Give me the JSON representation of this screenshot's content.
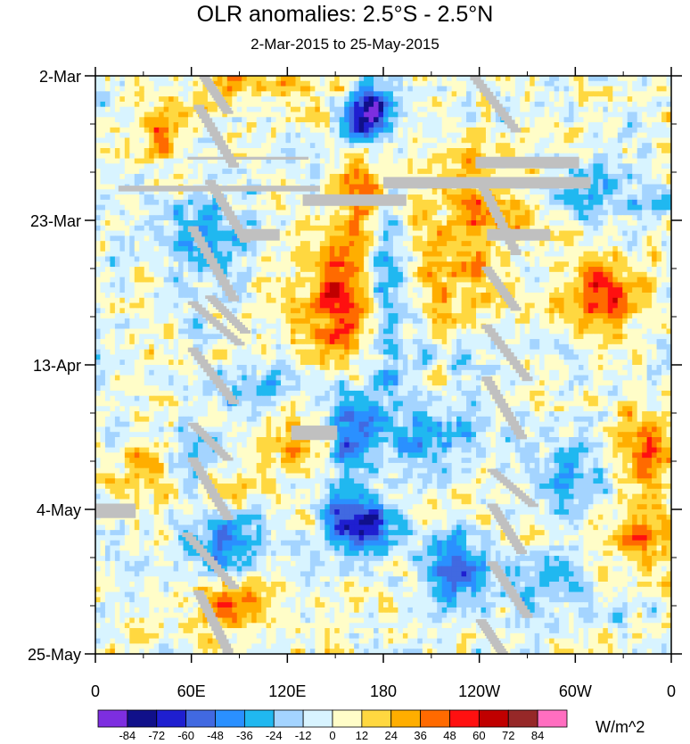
{
  "chart_data": {
    "type": "heatmap",
    "title": "OLR anomalies: 2.5°S - 2.5°N",
    "subtitle": "2-Mar-2015 to 25-May-2015",
    "x_ticks": [
      "0",
      "60E",
      "120E",
      "180",
      "120W",
      "60W",
      "0"
    ],
    "x_range": [
      0,
      360
    ],
    "y_ticks": [
      "2-Mar",
      "23-Mar",
      "13-Apr",
      "4-May",
      "25-May"
    ],
    "y_range": [
      "2-Mar-2015",
      "25-May-2015"
    ],
    "colorbar": {
      "unit": "W/m^2",
      "levels": [
        "-84",
        "-72",
        "-60",
        "-48",
        "-36",
        "-24",
        "-12",
        "0",
        "12",
        "24",
        "36",
        "48",
        "60",
        "72",
        "84"
      ],
      "colors": [
        "#7d2ee0",
        "#10108a",
        "#1f1fd0",
        "#4169e1",
        "#2a90ff",
        "#20b8f0",
        "#a4d4ff",
        "#d8f4ff",
        "#fffdc8",
        "#ffd840",
        "#ffae00",
        "#ff6a00",
        "#ff1010",
        "#c00000",
        "#962828",
        "#ff6ec0"
      ]
    },
    "missing_color": "#c0c0c0"
  }
}
